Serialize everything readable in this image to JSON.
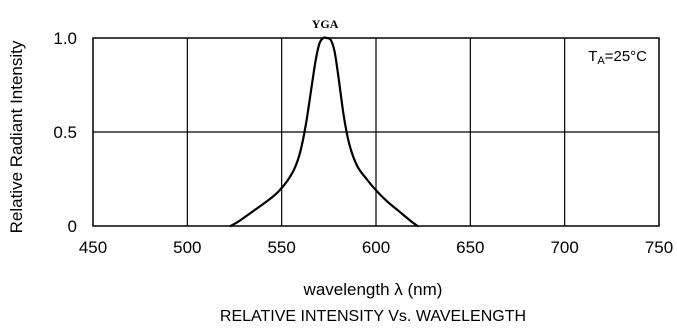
{
  "chart_data": {
    "type": "line",
    "title": "RELATIVE INTENSITY Vs. WAVELENGTH",
    "xlabel": "wavelength λ  (nm)",
    "ylabel": "Relative  Radiant  Intensity",
    "xlim": [
      450,
      750
    ],
    "ylim": [
      0,
      1.0
    ],
    "x_ticks": [
      450,
      500,
      550,
      600,
      650,
      700,
      750
    ],
    "y_ticks": [
      0,
      0.5,
      1.0
    ],
    "x_tick_labels": [
      "450",
      "500",
      "550",
      "600",
      "650",
      "700",
      "750"
    ],
    "y_tick_labels": [
      "0",
      "0.5",
      "1.0"
    ],
    "grid": true,
    "annotation": {
      "main": "T",
      "sub": "A",
      "rest": "=25°C"
    },
    "series": [
      {
        "name": "YGA",
        "color": "#000000",
        "x": [
          523,
          528,
          535,
          542,
          548,
          553,
          557,
          560,
          563,
          566,
          568,
          570,
          572,
          574,
          576,
          578,
          580,
          583,
          586,
          590,
          595,
          600,
          606,
          612,
          618,
          622
        ],
        "y": [
          0.0,
          0.03,
          0.08,
          0.13,
          0.18,
          0.24,
          0.31,
          0.4,
          0.55,
          0.75,
          0.88,
          0.97,
          1.0,
          1.0,
          0.99,
          0.93,
          0.8,
          0.58,
          0.43,
          0.32,
          0.25,
          0.19,
          0.13,
          0.08,
          0.03,
          0.0
        ]
      }
    ]
  }
}
